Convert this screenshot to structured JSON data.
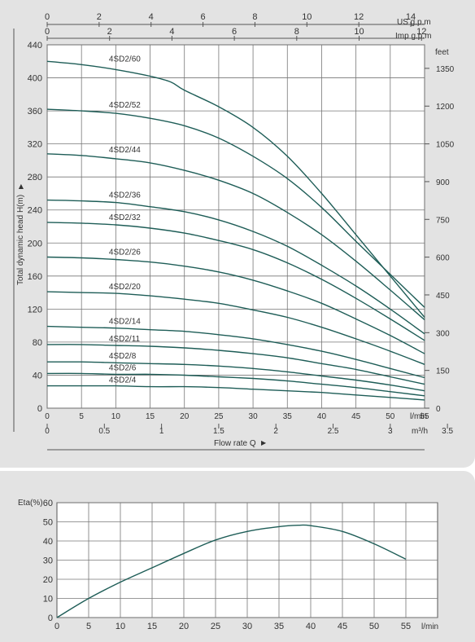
{
  "colors": {
    "curve": "#1e5d57",
    "grid": "#777777",
    "text": "#333333",
    "panel": "#e3e3e3"
  },
  "head_chart": {
    "top_axis_1": {
      "unit": "US g.p.m",
      "ticks": [
        "0",
        "2",
        "4",
        "6",
        "8",
        "10",
        "12",
        "14"
      ]
    },
    "top_axis_2": {
      "unit": "Imp g.p.m",
      "ticks": [
        "0",
        "2",
        "4",
        "6",
        "8",
        "10",
        "12"
      ]
    },
    "ylabel": "Total dynamic head H(m)",
    "arrow_glyph": "▶",
    "y_right_unit": "feet",
    "y_right_ticks": [
      "0",
      "150",
      "300",
      "450",
      "600",
      "750",
      "900",
      "1050",
      "1200",
      "1350"
    ],
    "x_unit": "l/min",
    "x2_unit": "m³/h",
    "x2_ticks": [
      "0",
      "0.5",
      "1",
      "1.5",
      "2",
      "2.5",
      "3",
      "3.5"
    ],
    "xlabel": "Flow  rate Q"
  },
  "eff_chart": {
    "ylabel": "Eta(%)",
    "x_unit": "l/min"
  },
  "chart_data": [
    {
      "type": "line",
      "x_unit": "l/min",
      "y_unit": "m",
      "xlim": [
        0,
        55
      ],
      "ylim": [
        0,
        440
      ],
      "x_ticks": [
        0,
        5,
        10,
        15,
        20,
        25,
        30,
        35,
        40,
        45,
        50,
        55
      ],
      "y_ticks": [
        0,
        40,
        80,
        120,
        160,
        200,
        240,
        280,
        320,
        360,
        400,
        440
      ],
      "grid": true,
      "series": [
        {
          "name": "4SD2/60",
          "x": [
            0,
            5,
            10,
            15,
            18,
            20,
            25,
            30,
            35,
            40,
            45,
            50,
            55
          ],
          "y": [
            420,
            416,
            410,
            402,
            395,
            385,
            365,
            340,
            305,
            260,
            210,
            160,
            110
          ]
        },
        {
          "name": "4SD2/52",
          "x": [
            0,
            5,
            10,
            15,
            20,
            25,
            30,
            35,
            40,
            45,
            50,
            55
          ],
          "y": [
            362,
            360,
            357,
            351,
            342,
            327,
            305,
            278,
            243,
            202,
            162,
            122
          ]
        },
        {
          "name": "4SD2/44",
          "x": [
            0,
            5,
            10,
            15,
            20,
            25,
            30,
            35,
            40,
            45,
            50,
            55
          ],
          "y": [
            308,
            306,
            302,
            297,
            288,
            276,
            260,
            237,
            210,
            178,
            143,
            107
          ]
        },
        {
          "name": "4SD2/36",
          "x": [
            0,
            5,
            10,
            15,
            20,
            25,
            30,
            35,
            40,
            45,
            50,
            55
          ],
          "y": [
            252,
            251,
            249,
            244,
            238,
            228,
            214,
            196,
            173,
            148,
            120,
            90
          ]
        },
        {
          "name": "4SD2/32",
          "x": [
            0,
            5,
            10,
            15,
            20,
            25,
            30,
            35,
            40,
            45,
            50,
            55
          ],
          "y": [
            225,
            224,
            222,
            218,
            212,
            203,
            192,
            176,
            156,
            133,
            108,
            82
          ]
        },
        {
          "name": "4SD2/26",
          "x": [
            0,
            5,
            10,
            15,
            20,
            25,
            30,
            35,
            40,
            45,
            50,
            55
          ],
          "y": [
            183,
            182,
            180,
            177,
            172,
            165,
            155,
            142,
            127,
            108,
            88,
            66
          ]
        },
        {
          "name": "4SD2/20",
          "x": [
            0,
            5,
            10,
            15,
            20,
            25,
            30,
            35,
            40,
            45,
            50,
            55
          ],
          "y": [
            141,
            140,
            139,
            136,
            132,
            127,
            119,
            110,
            98,
            84,
            69,
            53
          ]
        },
        {
          "name": "4SD2/14",
          "x": [
            0,
            5,
            10,
            15,
            20,
            25,
            30,
            35,
            40,
            45,
            50,
            55
          ],
          "y": [
            99,
            98,
            97,
            95,
            93,
            89,
            84,
            77,
            69,
            59,
            48,
            37
          ]
        },
        {
          "name": "4SD2/11",
          "x": [
            0,
            5,
            10,
            15,
            20,
            25,
            30,
            35,
            40,
            45,
            50,
            55
          ],
          "y": [
            77,
            77,
            76,
            75,
            73,
            70,
            66,
            61,
            54,
            47,
            38,
            29
          ]
        },
        {
          "name": "4SD2/8",
          "x": [
            0,
            5,
            10,
            15,
            20,
            25,
            30,
            35,
            40,
            45,
            50,
            55
          ],
          "y": [
            56,
            56,
            55,
            54,
            53,
            51,
            48,
            44,
            39,
            34,
            28,
            21
          ]
        },
        {
          "name": "4SD2/6",
          "x": [
            0,
            5,
            10,
            15,
            20,
            25,
            30,
            35,
            40,
            45,
            50,
            55
          ],
          "y": [
            42,
            42,
            41,
            41,
            40,
            38,
            36,
            33,
            29,
            25,
            20,
            15
          ]
        },
        {
          "name": "4SD2/4",
          "x": [
            0,
            5,
            10,
            15,
            20,
            25,
            30,
            35,
            40,
            45,
            50,
            55
          ],
          "y": [
            27,
            27,
            27,
            26,
            26,
            25,
            23,
            21,
            19,
            16,
            13,
            10
          ]
        }
      ]
    },
    {
      "type": "line",
      "x_unit": "l/min",
      "y_unit": "%",
      "xlim": [
        0,
        60
      ],
      "ylim": [
        0,
        60
      ],
      "x_ticks": [
        0,
        5,
        10,
        15,
        20,
        25,
        30,
        35,
        40,
        45,
        50,
        55
      ],
      "y_ticks": [
        0,
        10,
        20,
        30,
        40,
        50,
        60
      ],
      "grid": true,
      "series": [
        {
          "x": [
            0,
            5,
            10,
            15,
            20,
            25,
            30,
            35,
            38,
            40,
            45,
            50,
            55
          ],
          "y": [
            0,
            10,
            18.5,
            26,
            33.5,
            40.5,
            45,
            47.5,
            48.2,
            48,
            45,
            38.5,
            30.5
          ]
        }
      ]
    }
  ]
}
